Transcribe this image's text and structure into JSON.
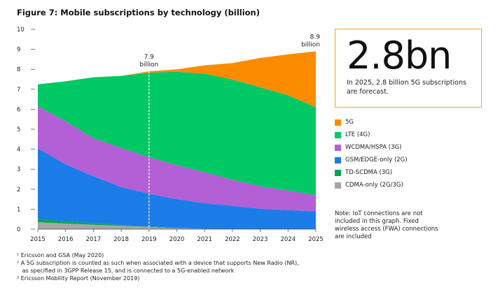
{
  "figure_title": "Figure 7: Mobile subscriptions by technology (billion)",
  "chart_data": {
    "type": "area",
    "stacked": true,
    "title": "Figure 7: Mobile subscriptions by technology (billion)",
    "xlabel": "",
    "ylabel": "",
    "x": [
      "2015",
      "2016",
      "2017",
      "2018",
      "2019",
      "2020",
      "2021",
      "2022",
      "2023",
      "2024",
      "2025"
    ],
    "ylim": [
      0,
      10
    ],
    "yticks": [
      "0",
      "1",
      "2",
      "3",
      "4",
      "5",
      "6",
      "7",
      "8",
      "9",
      "10"
    ],
    "grid": false,
    "legend_position": "right",
    "series": [
      {
        "name": "CDMA-only (2G/3G)",
        "color": "#a6a6a6",
        "values": [
          0.35,
          0.28,
          0.22,
          0.17,
          0.11,
          0.05,
          0.02,
          0.01,
          0.0,
          0.0,
          0.0
        ]
      },
      {
        "name": "TD-SCDMA (3G)",
        "color": "#00a651",
        "values": [
          0.15,
          0.12,
          0.08,
          0.04,
          0.02,
          0.01,
          0.0,
          0.0,
          0.0,
          0.0,
          0.0
        ]
      },
      {
        "name": "GSM/EDGE-only (2G)",
        "color": "#1c7ce8",
        "values": [
          3.55,
          2.85,
          2.35,
          1.9,
          1.65,
          1.44,
          1.28,
          1.16,
          1.02,
          0.95,
          0.88
        ]
      },
      {
        "name": "WCDMA/HSPA (3G)",
        "color": "#b35fd6",
        "values": [
          2.1,
          2.15,
          1.9,
          1.95,
          1.82,
          1.7,
          1.55,
          1.3,
          1.13,
          0.98,
          0.82
        ]
      },
      {
        "name": "LTE (4G)",
        "color": "#00c865",
        "values": [
          1.1,
          2.0,
          3.05,
          3.61,
          4.23,
          4.68,
          4.93,
          5.02,
          4.95,
          4.77,
          4.4
        ]
      },
      {
        "name": "5G",
        "color": "#fb8c00",
        "values": [
          0.0,
          0.0,
          0.0,
          0.0,
          0.07,
          0.12,
          0.42,
          0.82,
          1.47,
          2.05,
          2.8
        ]
      }
    ],
    "annotations": [
      {
        "x": "2019",
        "y": 7.9,
        "line1": "7.9",
        "line2": "billion"
      },
      {
        "x": "2025",
        "y": 8.9,
        "line1": "8.9",
        "line2": "billion"
      }
    ]
  },
  "callout": {
    "big": "2.8bn",
    "text": "In 2025, 2.8 billion 5G subscriptions are forecast."
  },
  "legend": [
    {
      "label": "5G",
      "color": "#fb8c00"
    },
    {
      "label": "LTE (4G)",
      "color": "#00c865"
    },
    {
      "label": "WCDMA/HSPA (3G)",
      "color": "#b35fd6"
    },
    {
      "label": "GSM/EDGE-only (2G)",
      "color": "#1c7ce8"
    },
    {
      "label": "TD-SCDMA (3G)",
      "color": "#00a651"
    },
    {
      "label": "CDMA-only (2G/3G)",
      "color": "#a6a6a6"
    }
  ],
  "note": "Note: IoT connections are not included in this graph. Fixed wireless access (FWA) connections are included",
  "footnotes": [
    "¹ Ericsson and GSA (May 2020)",
    "² A 5G subscription is counted as such when associated with a device that supports New Radio (NR),",
    "   as specified in 3GPP Release 15, and is connected to a 5G-enabled network",
    "³ Ericsson Mobility Report (November 2019)"
  ]
}
